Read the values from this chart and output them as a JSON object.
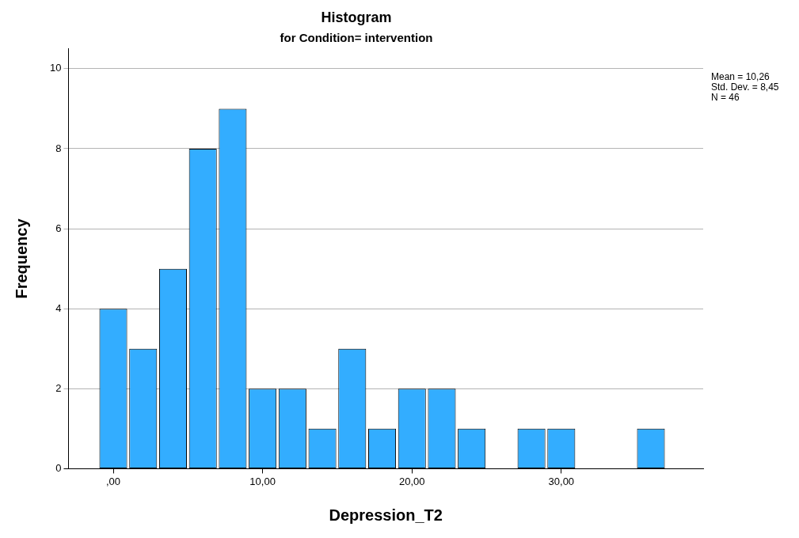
{
  "chart_data": {
    "type": "histogram",
    "title": "Histogram",
    "subtitle": "for Condition= intervention",
    "xlabel": "Depression_T2",
    "ylabel": "Frequency",
    "bins": [
      -1,
      1,
      3,
      5,
      7,
      9,
      11,
      13,
      15,
      17,
      19,
      21,
      23,
      25,
      27,
      29,
      31,
      33,
      35,
      37
    ],
    "values": [
      4,
      3,
      5,
      8,
      9,
      2,
      2,
      1,
      3,
      1,
      2,
      2,
      1,
      0,
      1,
      1,
      0,
      0,
      1
    ],
    "color": "#33adff",
    "xlim": [
      -3,
      39.5
    ],
    "xticks": [
      {
        "value": 0,
        "label": ",00"
      },
      {
        "value": 10,
        "label": "10,00"
      },
      {
        "value": 20,
        "label": "20,00"
      },
      {
        "value": 30,
        "label": "30,00"
      }
    ],
    "ylim": [
      0,
      10.5
    ],
    "yticks": [
      0,
      2,
      4,
      6,
      8,
      10
    ],
    "grid": "y",
    "legend": false,
    "annotations": [
      "Mean = 10,26",
      "Std. Dev. = 8,45",
      "N = 46"
    ]
  }
}
